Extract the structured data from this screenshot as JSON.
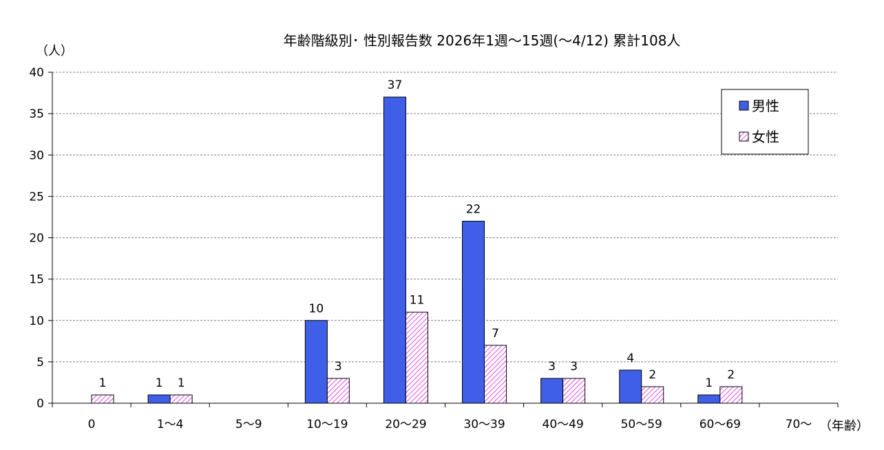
{
  "chart_data": {
    "type": "bar",
    "title": "年齢階級別･ 性別報告数  2026年1週～15週(～4/12)  累計108人",
    "ylabel": "（人）",
    "xlabel": "（年齢）",
    "categories": [
      "0",
      "1～4",
      "5～9",
      "10～19",
      "20～29",
      "30～39",
      "40～49",
      "50～59",
      "60～69",
      "70～"
    ],
    "series": [
      {
        "name": "男性",
        "values": [
          0,
          1,
          0,
          10,
          37,
          22,
          3,
          4,
          1,
          0
        ],
        "color": "#3f5fe8"
      },
      {
        "name": "女性",
        "values": [
          1,
          1,
          0,
          3,
          11,
          7,
          3,
          2,
          2,
          0
        ],
        "color": "#e24ae6",
        "pattern": "diagonal-hatch"
      }
    ],
    "data_labels": [
      [
        null,
        "1",
        null,
        "10",
        "37",
        "22",
        "3",
        "4",
        "1",
        null
      ],
      [
        "1",
        "1",
        null,
        "3",
        "11",
        "7",
        "3",
        "2",
        "2",
        null
      ]
    ],
    "ylim": [
      0,
      40
    ],
    "yticks": [
      "0",
      "5",
      "10",
      "15",
      "20",
      "25",
      "30",
      "35",
      "40"
    ],
    "grid": true,
    "legend_position": "top-right"
  }
}
